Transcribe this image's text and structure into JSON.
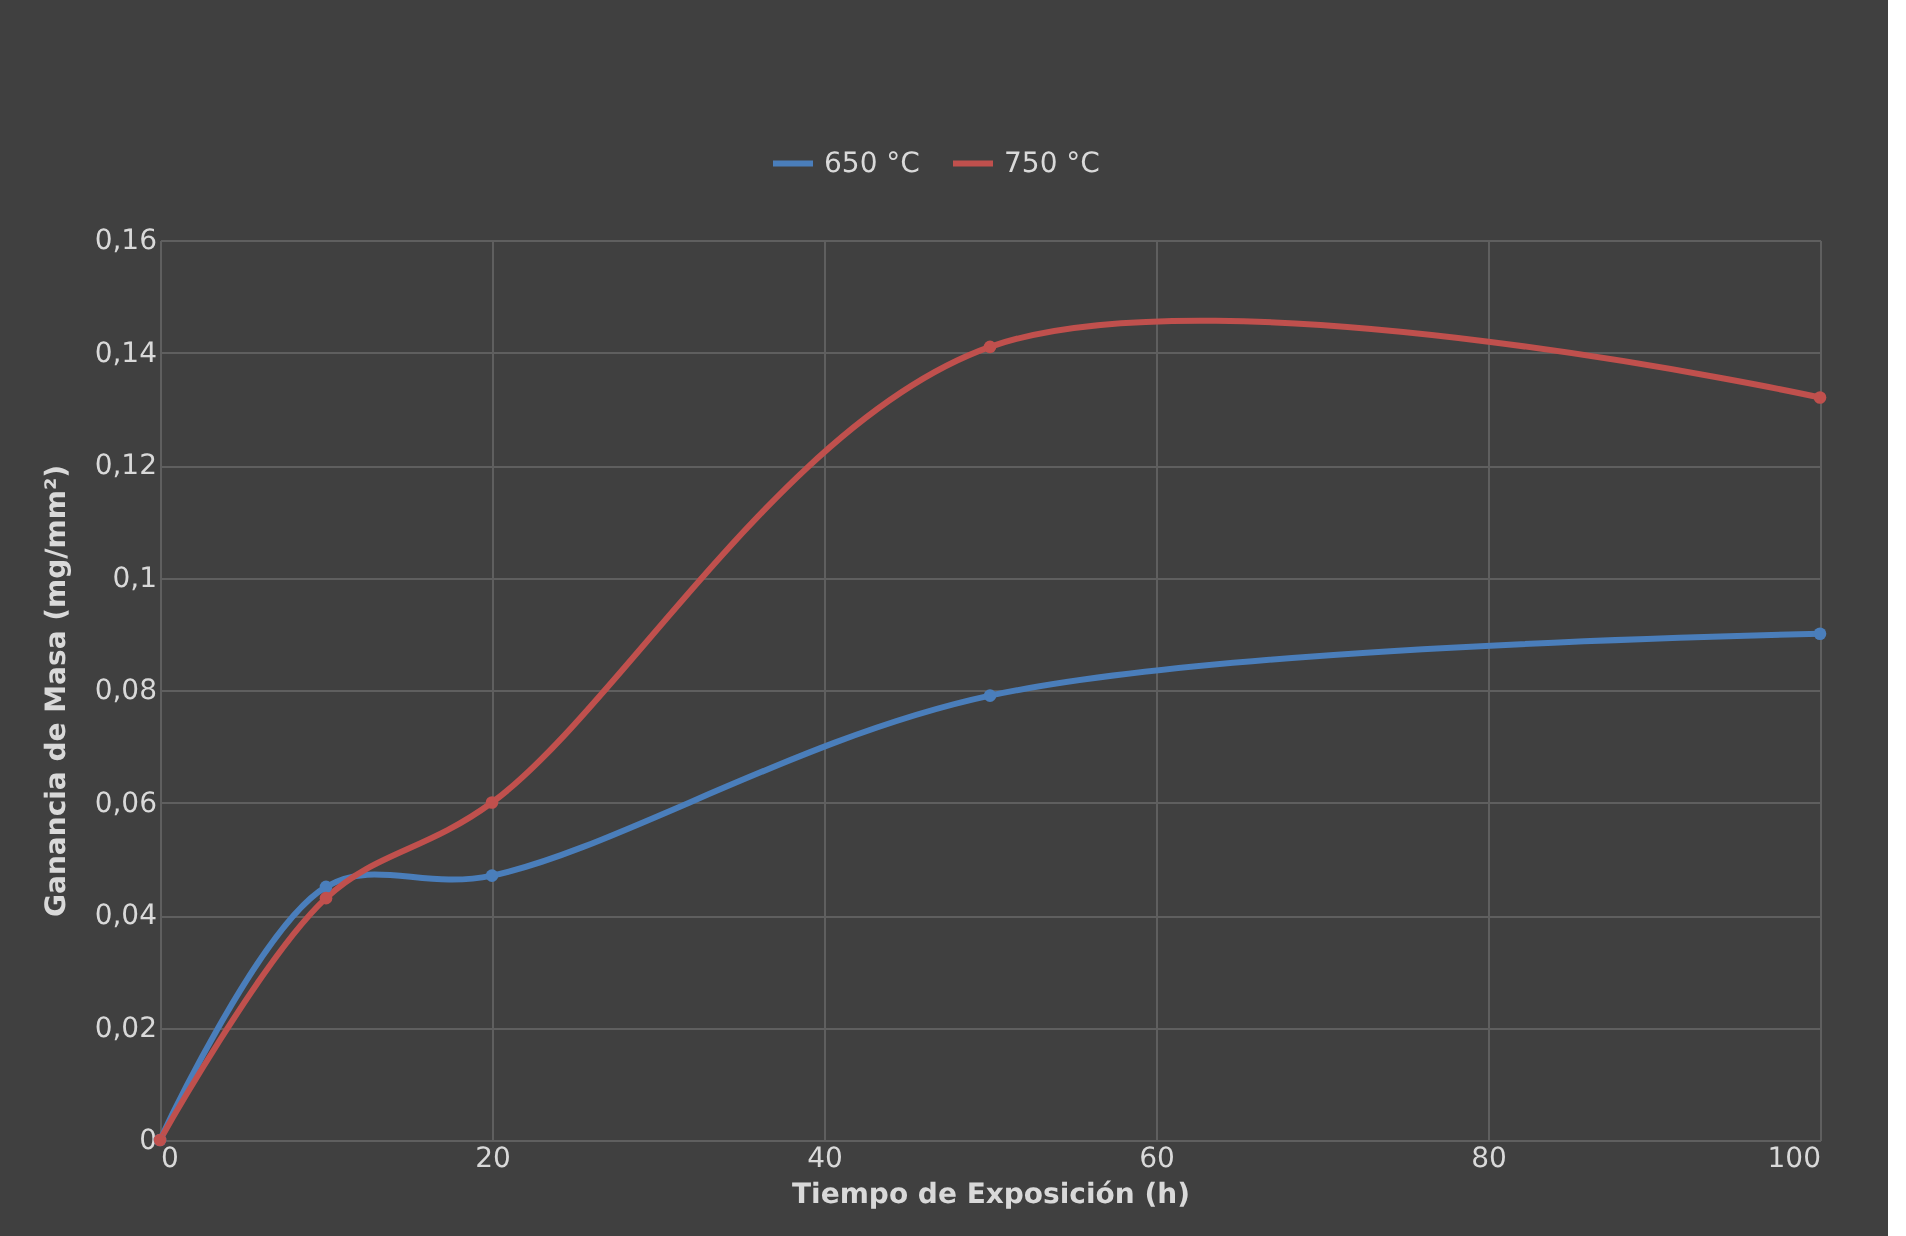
{
  "chart_data": {
    "type": "line",
    "xlabel": "Tiempo de Exposición (h)",
    "ylabel": "Ganancia de Masa (mg/mm²)",
    "x": [
      0,
      10,
      20,
      50,
      100
    ],
    "series": [
      {
        "name": "650 °C",
        "color": "#4a7ebb",
        "values": [
          0,
          0.045,
          0.047,
          0.079,
          0.09
        ]
      },
      {
        "name": "750 °C",
        "color": "#c0504d",
        "values": [
          0,
          0.043,
          0.06,
          0.141,
          0.132
        ]
      }
    ],
    "xlim": [
      0,
      100
    ],
    "xticks": [
      0,
      20,
      40,
      60,
      80,
      100
    ],
    "ylim": [
      0,
      0.16
    ],
    "yticks": [
      0,
      {
        "value": 0.02,
        "label": "0,02"
      },
      {
        "value": 0.04,
        "label": "0,04"
      },
      {
        "value": 0.06,
        "label": "0,06"
      },
      {
        "value": 0.08,
        "label": "0,08"
      },
      {
        "value": 0.1,
        "label": "0,1"
      },
      {
        "value": 0.12,
        "label": "0,12"
      },
      {
        "value": 0.14,
        "label": "0,14"
      },
      {
        "value": 0.16,
        "label": "0,16"
      }
    ],
    "grid": true,
    "legend": "top",
    "marker": "circle",
    "line_style": "solid"
  }
}
